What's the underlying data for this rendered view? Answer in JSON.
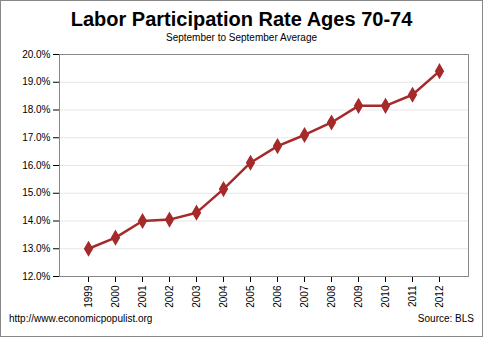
{
  "chart_data": {
    "type": "line",
    "title": "Labor Participation Rate Ages 70-74",
    "subtitle": "September to September Average",
    "annotations": [
      "http://www.economicpopulist.org",
      "Source:  BLS"
    ],
    "categories": [
      "1999",
      "2000",
      "2001",
      "2002",
      "2003",
      "2004",
      "2005",
      "2006",
      "2007",
      "2008",
      "2009",
      "2010",
      "2011",
      "2012"
    ],
    "values": [
      13.0,
      13.4,
      14.0,
      14.05,
      14.3,
      15.15,
      16.1,
      16.7,
      17.1,
      17.55,
      18.15,
      18.15,
      18.55,
      19.4
    ],
    "color": "#a52a2a",
    "marker": "diamond",
    "ylim": [
      12,
      20
    ],
    "yticks": [
      {
        "value": 12,
        "label": "12.0%"
      },
      {
        "value": 13,
        "label": "13.0%"
      },
      {
        "value": 14,
        "label": "14.0%"
      },
      {
        "value": 15,
        "label": "15.0%"
      },
      {
        "value": 16,
        "label": "16.0%"
      },
      {
        "value": 17,
        "label": "17.0%"
      },
      {
        "value": 18,
        "label": "18.0%"
      },
      {
        "value": 19,
        "label": "19.0%"
      },
      {
        "value": 20,
        "label": "20.0%"
      }
    ],
    "grid": true
  }
}
